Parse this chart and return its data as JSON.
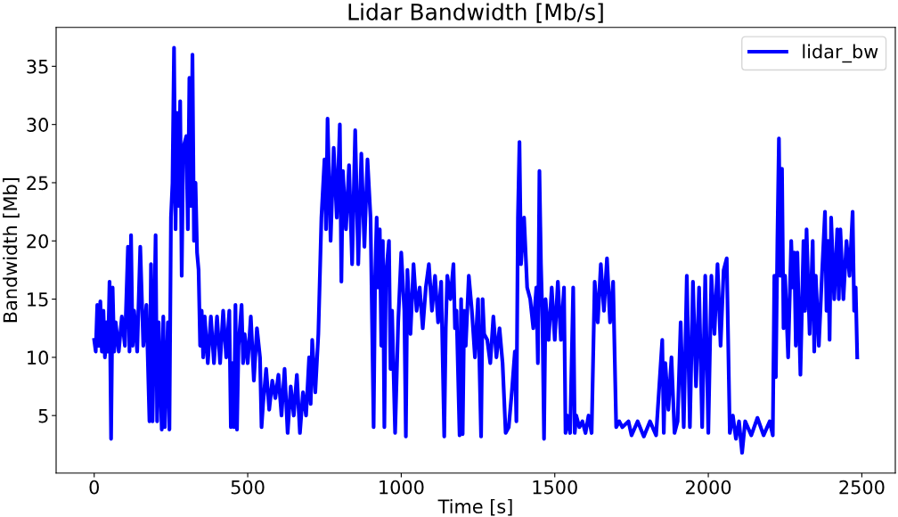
{
  "chart_data": {
    "type": "line",
    "title": "Lidar Bandwidth [Mb/s]",
    "xlabel": "Time [s]",
    "ylabel": "Bandwidth [Mb]",
    "xlim": [
      -124,
      2609
    ],
    "ylim": [
      0.06,
      38.34
    ],
    "xticks": [
      0,
      500,
      1000,
      1500,
      2000,
      2500
    ],
    "yticks": [
      5,
      10,
      15,
      20,
      25,
      30,
      35
    ],
    "grid": false,
    "legend": "top right",
    "line_style": "solid",
    "marker": "none",
    "series": [
      {
        "name": "lidar_bw",
        "color": "#0000ff",
        "x": [
          0,
          5,
          10,
          15,
          20,
          25,
          30,
          35,
          40,
          45,
          50,
          55,
          60,
          65,
          70,
          80,
          90,
          100,
          110,
          115,
          120,
          125,
          130,
          140,
          150,
          160,
          170,
          180,
          185,
          190,
          200,
          205,
          210,
          220,
          225,
          230,
          240,
          245,
          250,
          255,
          260,
          265,
          270,
          275,
          280,
          285,
          290,
          300,
          305,
          310,
          315,
          320,
          325,
          330,
          335,
          340,
          345,
          350,
          355,
          360,
          370,
          380,
          390,
          400,
          410,
          420,
          430,
          440,
          445,
          450,
          455,
          460,
          465,
          470,
          480,
          485,
          490,
          500,
          510,
          520,
          530,
          540,
          545,
          550,
          560,
          570,
          580,
          590,
          600,
          610,
          620,
          630,
          640,
          650,
          660,
          670,
          680,
          690,
          700,
          705,
          710,
          720,
          730,
          740,
          750,
          755,
          760,
          770,
          780,
          790,
          800,
          805,
          810,
          820,
          830,
          840,
          850,
          860,
          870,
          880,
          890,
          900,
          905,
          910,
          915,
          920,
          925,
          930,
          935,
          940,
          945,
          950,
          960,
          965,
          970,
          980,
          990,
          1000,
          1010,
          1015,
          1020,
          1030,
          1040,
          1050,
          1060,
          1070,
          1080,
          1090,
          1100,
          1110,
          1120,
          1130,
          1140,
          1145,
          1150,
          1160,
          1170,
          1175,
          1180,
          1190,
          1195,
          1200,
          1205,
          1210,
          1220,
          1230,
          1240,
          1250,
          1260,
          1265,
          1270,
          1280,
          1290,
          1300,
          1310,
          1320,
          1330,
          1340,
          1350,
          1360,
          1370,
          1375,
          1380,
          1385,
          1390,
          1400,
          1410,
          1420,
          1430,
          1440,
          1445,
          1450,
          1455,
          1460,
          1465,
          1470,
          1480,
          1490,
          1500,
          1510,
          1520,
          1530,
          1535,
          1540,
          1550,
          1560,
          1565,
          1570,
          1580,
          1590,
          1600,
          1610,
          1620,
          1630,
          1640,
          1650,
          1660,
          1670,
          1680,
          1690,
          1700,
          1710,
          1720,
          1740,
          1750,
          1770,
          1790,
          1810,
          1830,
          1850,
          1855,
          1860,
          1870,
          1880,
          1890,
          1900,
          1910,
          1920,
          1930,
          1940,
          1950,
          1960,
          1970,
          1980,
          1990,
          2000,
          2010,
          2020,
          2030,
          2040,
          2050,
          2060,
          2070,
          2080,
          2090,
          2100,
          2110,
          2120,
          2140,
          2160,
          2180,
          2200,
          2210,
          2215,
          2220,
          2225,
          2230,
          2235,
          2240,
          2245,
          2250,
          2260,
          2270,
          2275,
          2280,
          2285,
          2290,
          2300,
          2310,
          2315,
          2320,
          2330,
          2340,
          2345,
          2350,
          2360,
          2370,
          2380,
          2385,
          2390,
          2395,
          2400,
          2410,
          2420,
          2425,
          2430,
          2440,
          2450,
          2460,
          2470,
          2475,
          2480,
          2485
        ],
        "values": [
          11.5,
          10.5,
          14.5,
          11,
          14.8,
          10.5,
          14,
          10,
          13,
          10.5,
          16.5,
          3,
          16,
          10.5,
          13,
          10.5,
          13.5,
          11,
          19.5,
          10.5,
          20.5,
          11,
          14,
          10.5,
          19.5,
          11,
          14.5,
          4.5,
          18,
          4.5,
          20.5,
          4.5,
          13,
          3.8,
          13.5,
          4,
          13,
          3.8,
          22,
          25,
          36.6,
          21,
          31,
          23,
          32,
          17,
          28,
          29,
          21,
          34,
          23,
          36,
          20,
          25,
          19,
          17.5,
          11,
          14,
          10,
          13.5,
          9.5,
          13.5,
          9.5,
          13.5,
          9.5,
          14,
          10,
          14,
          4,
          9.5,
          4,
          14.5,
          3.8,
          11,
          14.5,
          9.5,
          12,
          9.5,
          13.5,
          8,
          12.5,
          10,
          4,
          6,
          9,
          5.5,
          8,
          6.5,
          8.5,
          5,
          9,
          3.5,
          7.5,
          5,
          8.5,
          3.5,
          7,
          5,
          10,
          6,
          11.5,
          7,
          12,
          22,
          27,
          21,
          30.5,
          20,
          28,
          22,
          30,
          16.5,
          26,
          21,
          26.5,
          18,
          29.5,
          18,
          27.5,
          19.5,
          27,
          22,
          13,
          4,
          17,
          22,
          16,
          21,
          11,
          20,
          4,
          17,
          20,
          9,
          14,
          3.5,
          13,
          19,
          14,
          3.2,
          17.5,
          12,
          18,
          14,
          16,
          12.5,
          16,
          18,
          14,
          17,
          13,
          16.5,
          3.2,
          12.5,
          17,
          15,
          18,
          12.5,
          14,
          3.3,
          15,
          3.4,
          14,
          11,
          17,
          14,
          10,
          15,
          3.2,
          15,
          12,
          11.5,
          9.5,
          13.5,
          10,
          12.5,
          9.5,
          3.5,
          4,
          7,
          10.5,
          4.5,
          22,
          28.5,
          18,
          22,
          16,
          15,
          12.5,
          16,
          9.5,
          26,
          18,
          13,
          3,
          15,
          11.5,
          16,
          11.5,
          16.5,
          11.5,
          16,
          3.5,
          5,
          3.5,
          16,
          3.5,
          5,
          4,
          4.5,
          3.5,
          5,
          3.5,
          16.5,
          13,
          18,
          14,
          18.5,
          13,
          16.5,
          4,
          4.5,
          4,
          4.5,
          3.3,
          4.5,
          3.2,
          4.5,
          3.3,
          11.5,
          3.5,
          9.5,
          5.5,
          10,
          3.5,
          4.5,
          13,
          4,
          17,
          4,
          16.5,
          7.5,
          16,
          4,
          17,
          3.5,
          17,
          12,
          18,
          11,
          17.5,
          18.5,
          3.5,
          5,
          3,
          4.5,
          1.8,
          4.5,
          3.3,
          4.8,
          3.3,
          4.5,
          3.3,
          17,
          8.3,
          20,
          28.8,
          17,
          26.2,
          12.5,
          17,
          10,
          20,
          16,
          19,
          11,
          19,
          8.5,
          20,
          14,
          21,
          12,
          20,
          10.5,
          17,
          11,
          17,
          22.5,
          14,
          20,
          11.5,
          22,
          15,
          21,
          15,
          21,
          15,
          20,
          17,
          22.5,
          14,
          16,
          10
        ]
      }
    ]
  }
}
